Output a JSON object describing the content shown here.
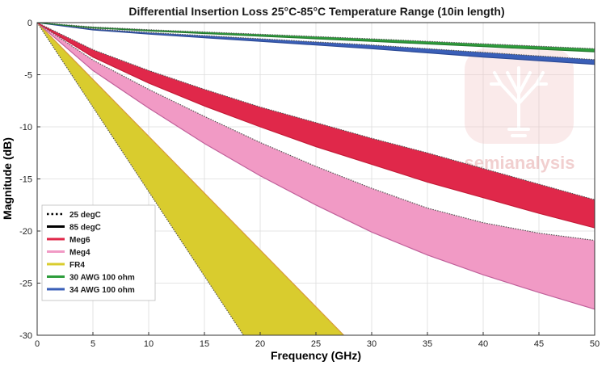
{
  "chart_data": {
    "type": "area",
    "title": "Differential Insertion Loss 25°C-85°C Temperature Range (10in length)",
    "xlabel": "Frequency (GHz)",
    "ylabel": "Magnitude (dB)",
    "xlim": [
      0,
      50
    ],
    "ylim": [
      -30,
      0
    ],
    "x_ticks": [
      0,
      5,
      10,
      15,
      20,
      25,
      30,
      35,
      40,
      45,
      50
    ],
    "y_ticks": [
      0,
      -5,
      -10,
      -15,
      -20,
      -25,
      -30
    ],
    "grid": true,
    "legend_position": "bottom-left",
    "series": [
      {
        "name": "FR4",
        "color": "#d9cc2e",
        "edge": "#d89a3a",
        "x_25": [
          0,
          18.5
        ],
        "y_25": [
          0,
          -30
        ],
        "x_85": [
          0,
          27.5
        ],
        "y_85": [
          0,
          -30
        ]
      },
      {
        "name": "Meg4",
        "color": "#f19ac5",
        "edge": "#c0609a",
        "x": [
          0,
          5,
          10,
          15,
          20,
          25,
          30,
          35,
          40,
          45,
          50
        ],
        "y_25": [
          0,
          -3.6,
          -6.4,
          -9.0,
          -11.5,
          -13.8,
          -15.9,
          -17.8,
          -19.2,
          -20.2,
          -20.9
        ],
        "y_85": [
          0,
          -4.6,
          -8.2,
          -11.6,
          -14.7,
          -17.5,
          -20.1,
          -22.3,
          -24.2,
          -25.9,
          -27.5
        ]
      },
      {
        "name": "Meg6",
        "color": "#e0284a",
        "edge": "#c41b38",
        "x": [
          0,
          5,
          10,
          15,
          20,
          25,
          30,
          35,
          40,
          45,
          50
        ],
        "y_25": [
          0,
          -2.6,
          -4.6,
          -6.4,
          -8.1,
          -9.6,
          -11.1,
          -12.5,
          -14.0,
          -15.5,
          -17.0
        ],
        "y_85": [
          0,
          -3.3,
          -5.8,
          -8.0,
          -10.0,
          -11.9,
          -13.6,
          -15.3,
          -16.8,
          -18.3,
          -19.7
        ]
      },
      {
        "name": "34 AWG 100 ohm",
        "color": "#3a5fb8",
        "edge": "#2c4a96",
        "x": [
          0,
          5,
          10,
          15,
          20,
          25,
          30,
          35,
          40,
          45,
          50
        ],
        "y_25": [
          0,
          -0.6,
          -0.95,
          -1.25,
          -1.55,
          -1.85,
          -2.15,
          -2.5,
          -2.85,
          -3.2,
          -3.55
        ],
        "y_85": [
          0,
          -0.7,
          -1.1,
          -1.45,
          -1.8,
          -2.15,
          -2.5,
          -2.9,
          -3.3,
          -3.65,
          -4.0
        ]
      },
      {
        "name": "30 AWG 100 ohm",
        "color": "#2e9d3c",
        "edge": "#227a2d",
        "x": [
          0,
          5,
          10,
          15,
          20,
          25,
          30,
          35,
          40,
          45,
          50
        ],
        "y_25": [
          0,
          -0.42,
          -0.68,
          -0.9,
          -1.12,
          -1.34,
          -1.56,
          -1.8,
          -2.03,
          -2.26,
          -2.5
        ],
        "y_85": [
          0,
          -0.5,
          -0.8,
          -1.05,
          -1.3,
          -1.55,
          -1.8,
          -2.05,
          -2.3,
          -2.55,
          -2.8
        ]
      }
    ],
    "legend": [
      {
        "label": "25 degC",
        "style": "dotted",
        "color": "#000000"
      },
      {
        "label": "85 degC",
        "style": "solid",
        "color": "#000000"
      },
      {
        "label": "Meg6",
        "style": "solid",
        "color": "#e0284a"
      },
      {
        "label": "Meg4",
        "style": "solid",
        "color": "#f19ac5"
      },
      {
        "label": "FR4",
        "style": "solid",
        "color": "#d9cc2e"
      },
      {
        "label": "30 AWG 100 ohm",
        "style": "solid",
        "color": "#2e9d3c"
      },
      {
        "label": "34 AWG 100 ohm",
        "style": "solid",
        "color": "#3a5fb8"
      }
    ]
  },
  "watermark": {
    "text": "semianalysis",
    "color": "#e6a9a9"
  }
}
